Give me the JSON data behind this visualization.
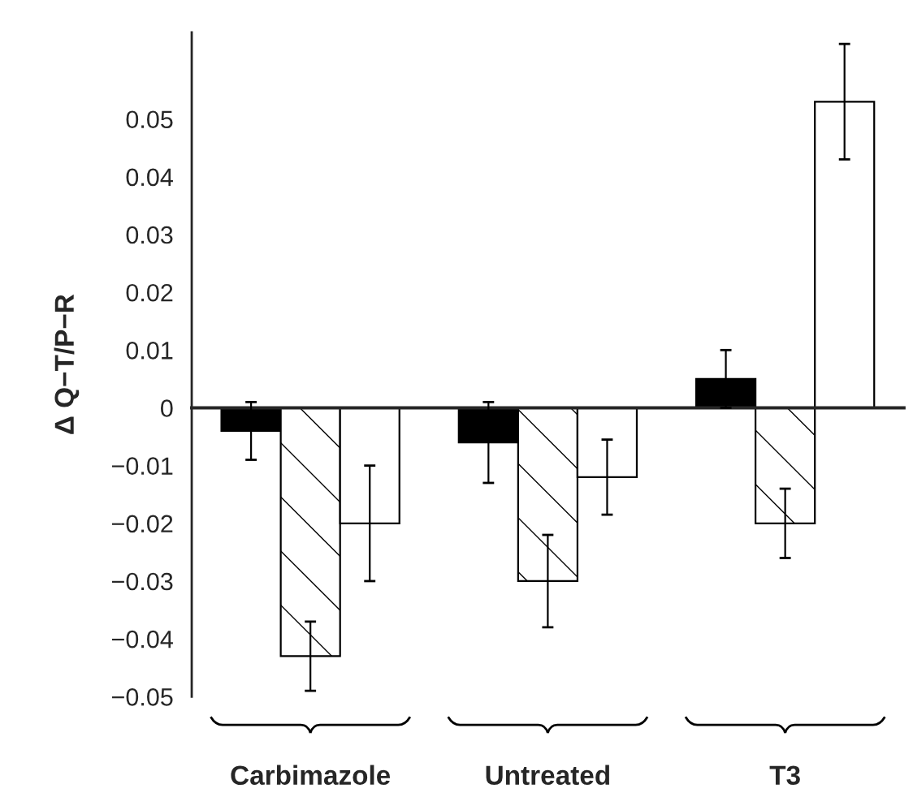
{
  "chart_data": {
    "type": "bar",
    "ylabel": "Δ Q−T/P−R",
    "categories": [
      "Carbimazole",
      "Untreated",
      "T3"
    ],
    "series": [
      {
        "color": "#000000",
        "values": [
          -0.004,
          -0.006,
          0.005
        ],
        "errors": [
          0.005,
          0.007,
          0.005
        ]
      },
      {
        "color": "#ffffff",
        "values": [
          -0.043,
          -0.03,
          -0.02
        ],
        "errors": [
          0.006,
          0.008,
          0.006
        ]
      },
      {
        "color": "#ffffff",
        "values": [
          -0.02,
          -0.012,
          0.053
        ],
        "errors": [
          0.01,
          0.0065,
          0.01
        ]
      }
    ],
    "ylim": [
      -0.05,
      0.065
    ],
    "yticks": [
      {
        "value": -0.05,
        "label": "−0.05"
      },
      {
        "value": -0.04,
        "label": "−0.04"
      },
      {
        "value": -0.03,
        "label": "−0.03"
      },
      {
        "value": -0.02,
        "label": "−0.02"
      },
      {
        "value": -0.01,
        "label": "−0.01"
      },
      0,
      0.01,
      0.02,
      0.03,
      0.04,
      0.05
    ],
    "legend": false
  }
}
